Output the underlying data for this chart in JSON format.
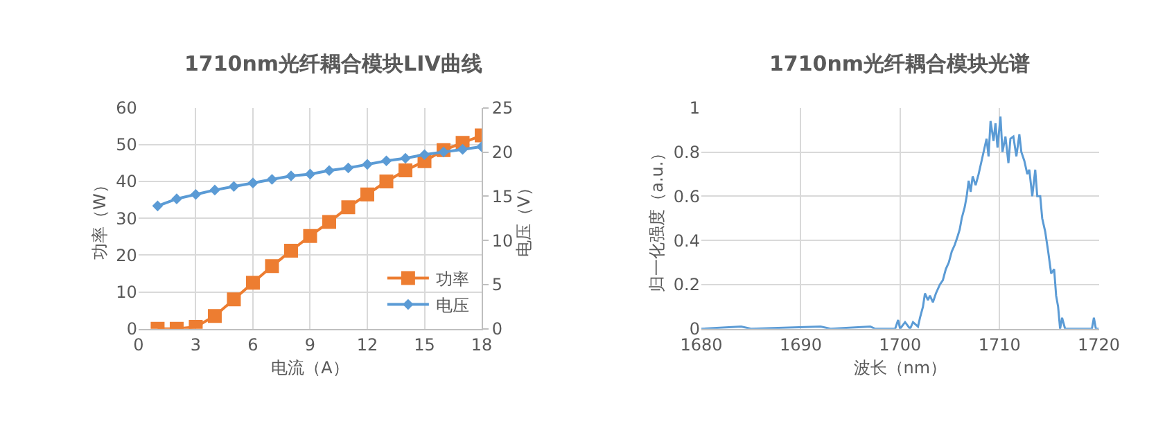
{
  "chart_data": [
    {
      "type": "line",
      "title": "1710nm光纤耦合模块LIV曲线",
      "xlabel": "电流（A）",
      "ylabel": "功率（W）",
      "y2label": "电压（V）",
      "xlim": [
        0,
        18
      ],
      "xticks": [
        0,
        3,
        6,
        9,
        12,
        15,
        18
      ],
      "ylim": [
        0,
        60
      ],
      "yticks": [
        0,
        10,
        20,
        30,
        40,
        50,
        60
      ],
      "y2lim": [
        0,
        25
      ],
      "y2ticks": [
        0,
        5,
        10,
        15,
        20,
        25
      ],
      "grid": true,
      "legend": "bottom right",
      "x": [
        1,
        2,
        3,
        4,
        5,
        6,
        7,
        8,
        9,
        10,
        11,
        12,
        13,
        14,
        15,
        16,
        17,
        18
      ],
      "series": [
        {
          "name": "功率",
          "color": "#ed7d31",
          "marker": "square",
          "values": [
            0,
            0,
            0.5,
            3.5,
            8,
            12.5,
            17,
            21.2,
            25.2,
            29,
            33,
            36.5,
            40,
            43,
            45.5,
            48.5,
            50.5,
            52.5
          ]
        },
        {
          "name": "电压",
          "color": "#5b9bd5",
          "marker": "diamond",
          "axis": "y2",
          "values": [
            13.9,
            14.7,
            15.2,
            15.7,
            16.1,
            16.5,
            16.9,
            17.3,
            17.5,
            17.9,
            18.2,
            18.6,
            19.0,
            19.3,
            19.7,
            20.0,
            20.3,
            20.6
          ]
        }
      ]
    },
    {
      "type": "line",
      "title": "1710nm光纤耦合模块光谱",
      "xlabel": "波长（nm）",
      "ylabel": "归一化强度（a.u.）",
      "xlim": [
        1680,
        1720
      ],
      "xticks": [
        1680,
        1690,
        1700,
        1710,
        1720
      ],
      "ylim": [
        0,
        1
      ],
      "yticks": [
        0,
        0.2,
        0.4,
        0.6,
        0.8,
        1
      ],
      "grid": true,
      "series": [
        {
          "color": "#5b9bd5",
          "marker": "none",
          "x": [
            1680,
            1684,
            1685,
            1692,
            1693,
            1697,
            1697.5,
            1699.5,
            1699.8,
            1700,
            1700.5,
            1701,
            1701.3,
            1701.8,
            1702,
            1702.3,
            1702.5,
            1702.8,
            1703,
            1703.3,
            1703.6,
            1704,
            1704.3,
            1704.6,
            1704.9,
            1705.2,
            1705.5,
            1705.8,
            1706,
            1706.2,
            1706.5,
            1706.7,
            1706.9,
            1707.1,
            1707.3,
            1707.6,
            1707.9,
            1708.2,
            1708.4,
            1708.7,
            1708.9,
            1709.1,
            1709.4,
            1709.6,
            1709.8,
            1710.1,
            1710.3,
            1710.6,
            1710.9,
            1711.1,
            1711.4,
            1711.7,
            1712,
            1712.2,
            1712.5,
            1712.8,
            1713,
            1713.3,
            1713.6,
            1713.8,
            1714.1,
            1714.3,
            1714.6,
            1714.9,
            1715.2,
            1715.5,
            1715.7,
            1715.9,
            1716.1,
            1716.3,
            1716.6,
            1717,
            1719.3,
            1719.5,
            1719.7,
            1720
          ],
          "values": [
            0,
            0.01,
            0,
            0.01,
            0,
            0.01,
            0,
            0,
            0.04,
            0,
            0.03,
            0,
            0.03,
            0.01,
            0.05,
            0.1,
            0.16,
            0.13,
            0.15,
            0.12,
            0.16,
            0.2,
            0.22,
            0.27,
            0.3,
            0.35,
            0.38,
            0.42,
            0.45,
            0.5,
            0.55,
            0.6,
            0.67,
            0.62,
            0.69,
            0.65,
            0.7,
            0.76,
            0.8,
            0.86,
            0.78,
            0.94,
            0.85,
            0.93,
            0.82,
            0.96,
            0.8,
            0.87,
            0.75,
            0.86,
            0.87,
            0.78,
            0.88,
            0.8,
            0.76,
            0.7,
            0.72,
            0.6,
            0.72,
            0.6,
            0.6,
            0.5,
            0.44,
            0.35,
            0.25,
            0.27,
            0.15,
            0.1,
            0,
            0.05,
            0,
            0,
            0,
            0.05,
            0,
            0
          ]
        }
      ]
    }
  ]
}
